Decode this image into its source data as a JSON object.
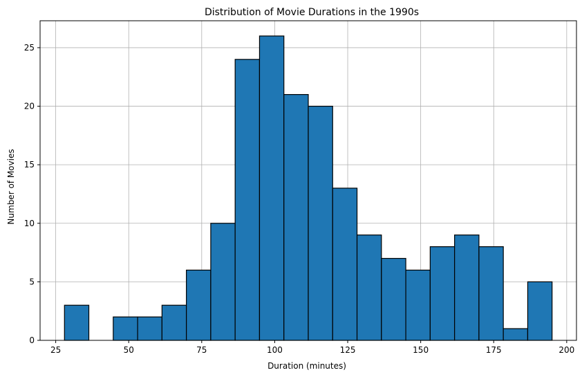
{
  "chart_data": {
    "type": "bar",
    "title": "Distribution of Movie Durations in the 1990s",
    "xlabel": "Duration (minutes)",
    "ylabel": "Number of Movies",
    "bin_edges": [
      28,
      36.35,
      44.7,
      53.05,
      61.4,
      69.75,
      78.1,
      86.45,
      94.8,
      103.15,
      111.5,
      119.85,
      128.2,
      136.55,
      144.9,
      153.25,
      161.6,
      169.95,
      178.3,
      186.65,
      195
    ],
    "values": [
      3,
      0,
      2,
      2,
      3,
      6,
      10,
      24,
      26,
      21,
      20,
      13,
      9,
      7,
      6,
      8,
      9,
      8,
      1,
      5
    ],
    "xlim": [
      19.65,
      203.35
    ],
    "ylim": [
      0,
      27.3
    ],
    "xticks": [
      25,
      50,
      75,
      100,
      125,
      150,
      175,
      200
    ],
    "yticks": [
      0,
      5,
      10,
      15,
      20,
      25
    ],
    "grid": true,
    "bar_color": "#1f77b4",
    "edge_color": "#000000"
  }
}
